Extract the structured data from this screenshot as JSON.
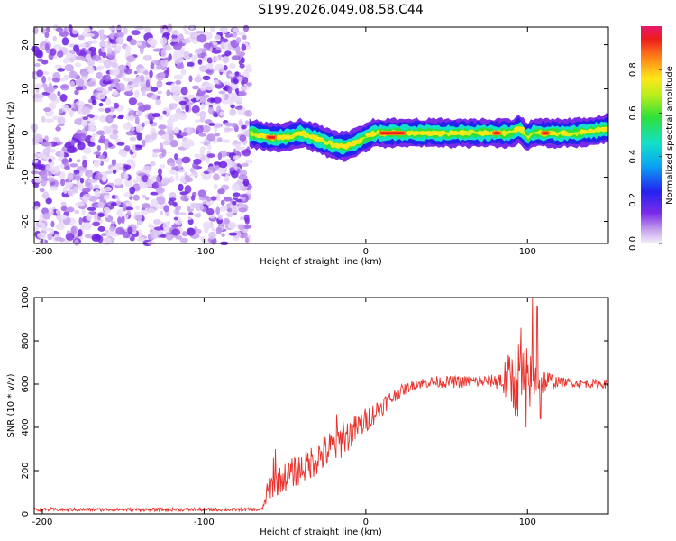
{
  "title": "S199.2026.049.08.58.C44",
  "chart_data": [
    {
      "type": "heatmap",
      "name": "spectrogram",
      "xlabel": "Height of straight line (km)",
      "ylabel": "Frequency (Hz)",
      "xlim": [
        -205,
        150
      ],
      "ylim": [
        -25,
        24
      ],
      "xticks": [
        -200,
        -100,
        0,
        100
      ],
      "xtick_labels": [
        "-200",
        "-100",
        "0",
        "100"
      ],
      "yticks": [
        -20,
        -10,
        0,
        10,
        20
      ],
      "ytick_labels": [
        "-20",
        "-10",
        "0",
        "10",
        "20"
      ],
      "noise_region": {
        "x": [
          -205,
          -72
        ],
        "description_values": "scattered low amplitude purple speckle 0.0-0.2"
      },
      "signal_band": {
        "x_start": -72,
        "x_end": 150,
        "center_freq_hz": [
          [
            -72,
            0
          ],
          [
            -60,
            -1
          ],
          [
            -50,
            -1
          ],
          [
            -40,
            0
          ],
          [
            -32,
            -1
          ],
          [
            -25,
            -2
          ],
          [
            -18,
            -3
          ],
          [
            -12,
            -3
          ],
          [
            -5,
            -2
          ],
          [
            0,
            -1
          ],
          [
            5,
            0
          ],
          [
            15,
            0
          ],
          [
            25,
            0
          ],
          [
            40,
            0
          ],
          [
            60,
            0
          ],
          [
            80,
            0
          ],
          [
            90,
            0
          ],
          [
            95,
            1
          ],
          [
            100,
            -1
          ],
          [
            103,
            0
          ],
          [
            110,
            0
          ],
          [
            130,
            0
          ],
          [
            150,
            1
          ]
        ],
        "peak_amplitude_segments": [
          [
            -62,
            -55
          ],
          [
            8,
            25
          ],
          [
            78,
            84
          ],
          [
            108,
            114
          ]
        ]
      },
      "colorbar": {
        "label": "Normalized spectral amplitude",
        "range": [
          0,
          1
        ],
        "ticks": [
          0.0,
          0.2,
          0.4,
          0.6,
          0.8
        ],
        "tick_labels": [
          "0.0",
          "0.2",
          "0.4",
          "0.6",
          "0.8"
        ]
      }
    },
    {
      "type": "line",
      "name": "snr",
      "xlabel": "Height of straight line (km)",
      "ylabel": "SNR (10 * v/v)",
      "xlim": [
        -205,
        150
      ],
      "ylim": [
        0,
        1000
      ],
      "xticks": [
        -200,
        -100,
        0,
        100
      ],
      "xtick_labels": [
        "-200",
        "-100",
        "0",
        "100"
      ],
      "yticks": [
        0,
        200,
        400,
        600,
        800,
        1000
      ],
      "ytick_labels": [
        "0",
        "200",
        "400",
        "600",
        "800",
        "1000"
      ],
      "color": "#e8302a",
      "trend": [
        [
          -205,
          20
        ],
        [
          -64,
          20
        ],
        [
          -60,
          120
        ],
        [
          -50,
          170
        ],
        [
          -40,
          210
        ],
        [
          -30,
          260
        ],
        [
          -20,
          310
        ],
        [
          -10,
          370
        ],
        [
          0,
          430
        ],
        [
          10,
          500
        ],
        [
          20,
          560
        ],
        [
          30,
          600
        ],
        [
          40,
          610
        ],
        [
          60,
          610
        ],
        [
          80,
          615
        ],
        [
          90,
          620
        ],
        [
          110,
          615
        ],
        [
          130,
          605
        ],
        [
          150,
          600
        ]
      ],
      "noise_amplitude": [
        [
          -205,
          8
        ],
        [
          -64,
          8
        ],
        [
          -60,
          60
        ],
        [
          -20,
          90
        ],
        [
          0,
          60
        ],
        [
          25,
          25
        ],
        [
          80,
          30
        ],
        [
          88,
          120
        ],
        [
          95,
          200
        ],
        [
          110,
          60
        ],
        [
          120,
          20
        ],
        [
          150,
          20
        ]
      ],
      "spikes": [
        [
          -57,
          260
        ],
        [
          -56,
          300
        ],
        [
          -18,
          460
        ],
        [
          -14,
          430
        ],
        [
          96,
          860
        ],
        [
          99,
          400
        ],
        [
          103,
          1000
        ],
        [
          106,
          960
        ],
        [
          108,
          440
        ]
      ]
    }
  ]
}
